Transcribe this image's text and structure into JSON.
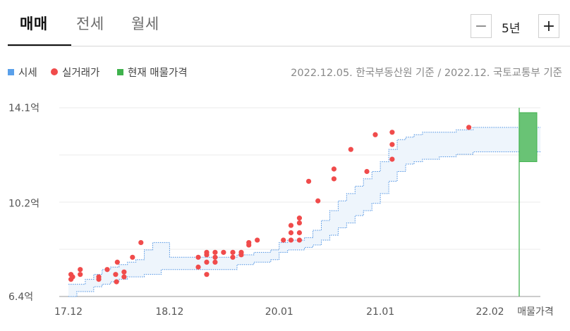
{
  "tabs": [
    {
      "label": "매매",
      "active": true
    },
    {
      "label": "전세",
      "active": false
    },
    {
      "label": "월세",
      "active": false
    }
  ],
  "period": {
    "value": "5년",
    "minus_label": "−",
    "plus_label": "+"
  },
  "legend": [
    {
      "label": "시세",
      "marker": "square",
      "color": "#5aa0ea"
    },
    {
      "label": "실거래가",
      "marker": "circle",
      "color": "#f04b4b"
    },
    {
      "label": "현재 매물가격",
      "marker": "square",
      "color": "#3fb24d"
    }
  ],
  "source_note": "2022.12.05. 한국부동산원 기준 / 2022.12. 국토교통부 기준",
  "colors": {
    "price_band_fill": "#eef5fc",
    "price_band_line": "#4a90e2",
    "transaction": "#f04b4b",
    "listing": "#3fb24d",
    "grid": "#ebebeb"
  },
  "chart_data": {
    "type": "scatter",
    "y_unit": "억",
    "ylim": [
      6.4,
      14.1
    ],
    "y_ticks": [
      {
        "value": 14.1,
        "label": "14.1억"
      },
      {
        "value": 10.2,
        "label": "10.2억"
      },
      {
        "value": 6.4,
        "label": "6.4억"
      }
    ],
    "x_unit": "months since 2017-12",
    "xlim": [
      0,
      63
    ],
    "x_ticks": [
      {
        "value": 0,
        "label": "17.12"
      },
      {
        "value": 12,
        "label": "18.12"
      },
      {
        "value": 25,
        "label": "20.01"
      },
      {
        "value": 37,
        "label": "21.01"
      },
      {
        "value": 50,
        "label": "22.02"
      }
    ],
    "listing_label": "매물가격",
    "grid": true,
    "series": [
      {
        "name": "시세",
        "kind": "band",
        "points": [
          {
            "x": 0,
            "low": 6.4,
            "high": 6.9
          },
          {
            "x": 1,
            "low": 6.6,
            "high": 6.9
          },
          {
            "x": 2,
            "low": 6.6,
            "high": 7.1
          },
          {
            "x": 3,
            "low": 6.8,
            "high": 7.3
          },
          {
            "x": 4,
            "low": 6.9,
            "high": 7.5
          },
          {
            "x": 5,
            "low": 7.0,
            "high": 7.6
          },
          {
            "x": 6,
            "low": 7.1,
            "high": 7.7
          },
          {
            "x": 7,
            "low": 7.2,
            "high": 7.8
          },
          {
            "x": 8,
            "low": 7.2,
            "high": 7.9
          },
          {
            "x": 9,
            "low": 7.3,
            "high": 8.3
          },
          {
            "x": 10,
            "low": 7.3,
            "high": 8.6
          },
          {
            "x": 11,
            "low": 7.5,
            "high": 8.6
          },
          {
            "x": 12,
            "low": 7.5,
            "high": 8.0
          },
          {
            "x": 14,
            "low": 7.5,
            "high": 8.0
          },
          {
            "x": 19,
            "low": 7.5,
            "high": 8.0
          },
          {
            "x": 20,
            "low": 7.7,
            "high": 8.1
          },
          {
            "x": 21,
            "low": 7.7,
            "high": 8.1
          },
          {
            "x": 22,
            "low": 7.8,
            "high": 8.2
          },
          {
            "x": 24,
            "low": 7.9,
            "high": 8.3
          },
          {
            "x": 25,
            "low": 8.2,
            "high": 8.6
          },
          {
            "x": 26,
            "low": 8.3,
            "high": 8.7
          },
          {
            "x": 28,
            "low": 8.4,
            "high": 8.8
          },
          {
            "x": 29,
            "low": 8.5,
            "high": 9.1
          },
          {
            "x": 30,
            "low": 8.7,
            "high": 9.5
          },
          {
            "x": 31,
            "low": 8.9,
            "high": 9.9
          },
          {
            "x": 32,
            "low": 9.2,
            "high": 10.3
          },
          {
            "x": 33,
            "low": 9.4,
            "high": 10.6
          },
          {
            "x": 34,
            "low": 9.7,
            "high": 10.9
          },
          {
            "x": 35,
            "low": 9.9,
            "high": 11.2
          },
          {
            "x": 36,
            "low": 10.2,
            "high": 11.5
          },
          {
            "x": 37,
            "low": 10.6,
            "high": 11.9
          },
          {
            "x": 38,
            "low": 11.1,
            "high": 12.4
          },
          {
            "x": 39,
            "low": 11.5,
            "high": 12.8
          },
          {
            "x": 40,
            "low": 11.8,
            "high": 12.9
          },
          {
            "x": 41,
            "low": 11.9,
            "high": 13.0
          },
          {
            "x": 42,
            "low": 12.0,
            "high": 13.1
          },
          {
            "x": 44,
            "low": 12.1,
            "high": 13.1
          },
          {
            "x": 46,
            "low": 12.2,
            "high": 13.2
          },
          {
            "x": 48,
            "low": 12.3,
            "high": 13.3
          },
          {
            "x": 56,
            "low": 12.3,
            "high": 13.3
          }
        ]
      },
      {
        "name": "실거래가",
        "kind": "points",
        "points": [
          {
            "x": 0.3,
            "y": 7.1
          },
          {
            "x": 0.3,
            "y": 7.3
          },
          {
            "x": 0.5,
            "y": 7.2
          },
          {
            "x": 1.4,
            "y": 7.5
          },
          {
            "x": 1.4,
            "y": 7.3
          },
          {
            "x": 3.6,
            "y": 7.2
          },
          {
            "x": 3.6,
            "y": 7.1
          },
          {
            "x": 4.6,
            "y": 7.5
          },
          {
            "x": 5.6,
            "y": 7.3
          },
          {
            "x": 5.7,
            "y": 7.0
          },
          {
            "x": 5.8,
            "y": 7.8
          },
          {
            "x": 6.6,
            "y": 7.4
          },
          {
            "x": 6.6,
            "y": 7.2
          },
          {
            "x": 7.6,
            "y": 8.0
          },
          {
            "x": 8.6,
            "y": 8.6
          },
          {
            "x": 15.4,
            "y": 8.0
          },
          {
            "x": 15.4,
            "y": 7.6
          },
          {
            "x": 16.4,
            "y": 7.3
          },
          {
            "x": 16.4,
            "y": 7.8
          },
          {
            "x": 16.4,
            "y": 8.1
          },
          {
            "x": 16.4,
            "y": 8.2
          },
          {
            "x": 17.4,
            "y": 7.8
          },
          {
            "x": 17.4,
            "y": 8.0
          },
          {
            "x": 17.4,
            "y": 8.2
          },
          {
            "x": 18.4,
            "y": 8.2
          },
          {
            "x": 19.5,
            "y": 8.0
          },
          {
            "x": 19.5,
            "y": 8.2
          },
          {
            "x": 20.5,
            "y": 8.1
          },
          {
            "x": 20.5,
            "y": 8.2
          },
          {
            "x": 21.4,
            "y": 8.5
          },
          {
            "x": 21.4,
            "y": 8.6
          },
          {
            "x": 22.4,
            "y": 8.7
          },
          {
            "x": 25.5,
            "y": 8.7
          },
          {
            "x": 26.4,
            "y": 9.0
          },
          {
            "x": 26.4,
            "y": 9.3
          },
          {
            "x": 26.4,
            "y": 8.7
          },
          {
            "x": 27.4,
            "y": 9.4
          },
          {
            "x": 27.4,
            "y": 9.6
          },
          {
            "x": 27.4,
            "y": 9.0
          },
          {
            "x": 27.4,
            "y": 8.7
          },
          {
            "x": 28.5,
            "y": 11.1
          },
          {
            "x": 29.6,
            "y": 10.3
          },
          {
            "x": 31.5,
            "y": 11.2
          },
          {
            "x": 31.5,
            "y": 11.6
          },
          {
            "x": 33.5,
            "y": 12.4
          },
          {
            "x": 35.4,
            "y": 11.5
          },
          {
            "x": 36.4,
            "y": 13.0
          },
          {
            "x": 38.4,
            "y": 12.0
          },
          {
            "x": 38.4,
            "y": 12.6
          },
          {
            "x": 38.4,
            "y": 13.1
          },
          {
            "x": 47.5,
            "y": 13.3
          }
        ]
      }
    ],
    "listing_range": {
      "low": 11.9,
      "high": 13.9
    }
  }
}
